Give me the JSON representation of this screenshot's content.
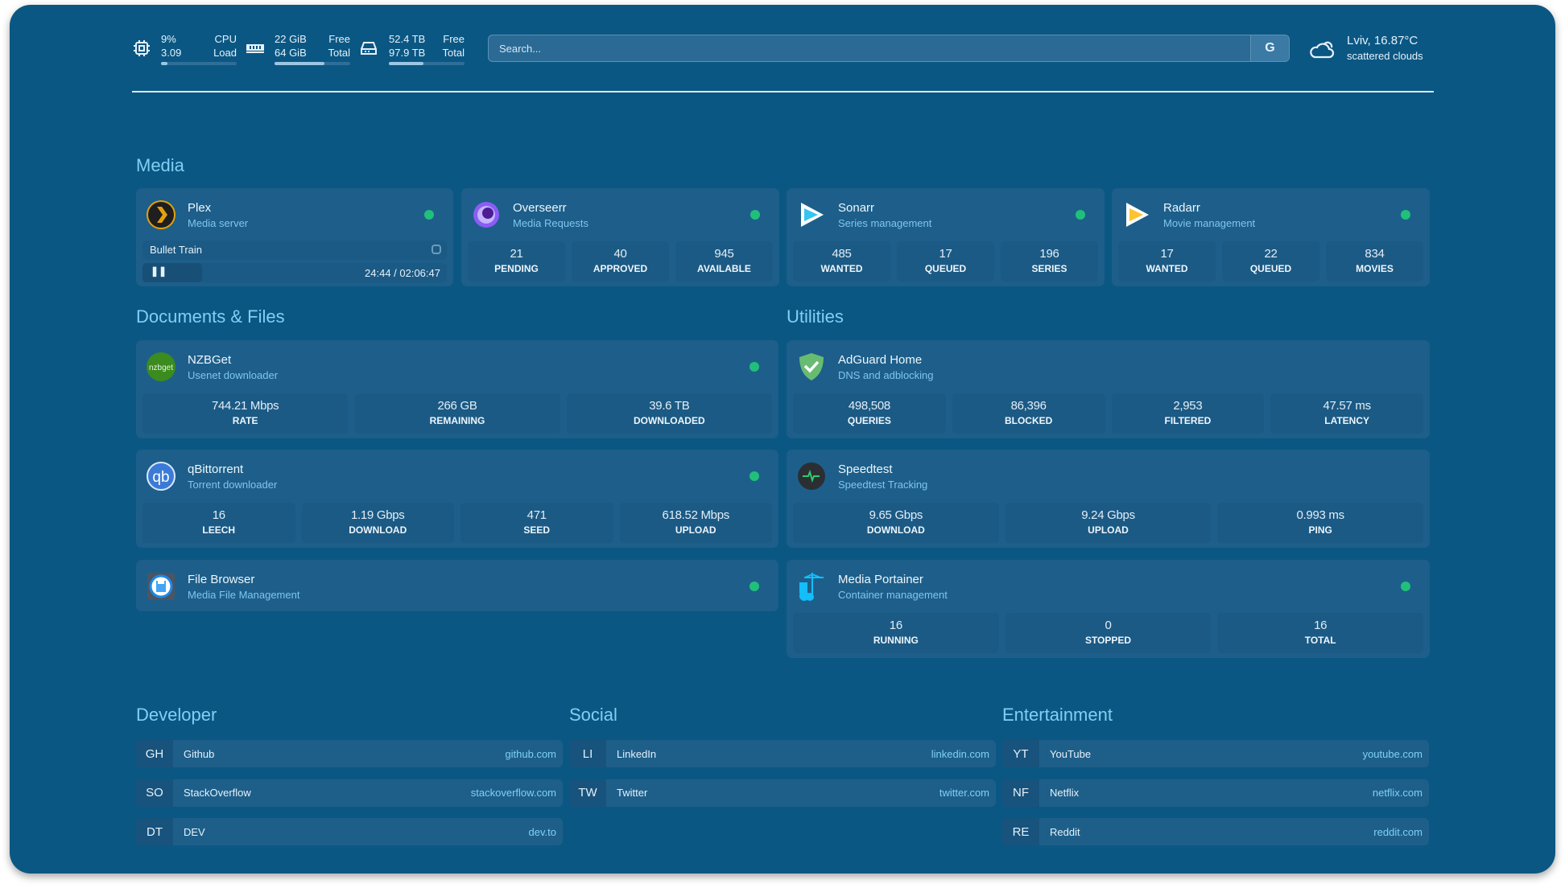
{
  "header": {
    "cpu": {
      "icon": "cpu-icon",
      "value1": "9%",
      "value2": "3.09",
      "label1": "CPU",
      "label2": "Load",
      "percent": 9
    },
    "memory": {
      "icon": "memory-icon",
      "value1": "22 GiB",
      "value2": "64 GiB",
      "label1": "Free",
      "label2": "Total",
      "percent": 66
    },
    "disk": {
      "icon": "disk-icon",
      "value1": "52.4 TB",
      "value2": "97.9 TB",
      "label1": "Free",
      "label2": "Total",
      "percent": 46
    },
    "search": {
      "placeholder": "Search...",
      "button": "G"
    },
    "weather": {
      "icon": "cloud-icon",
      "location_temp": "Lviv, 16.87°C",
      "condition": "scattered clouds"
    }
  },
  "colors": {
    "background": "#0b5783",
    "card": "#1d5f8a",
    "accent": "#7fd0f5",
    "status_ok": "#21c07a"
  },
  "media": {
    "title": "Media",
    "cards": [
      {
        "name": "Plex",
        "desc": "Media server",
        "icon": "plex-icon",
        "now_playing": {
          "title": "Bullet Train",
          "time": "24:44 / 02:06:47",
          "progress": 0.195
        }
      },
      {
        "name": "Overseerr",
        "desc": "Media Requests",
        "icon": "overseerr-icon",
        "stats": [
          {
            "value": "21",
            "label": "PENDING"
          },
          {
            "value": "40",
            "label": "APPROVED"
          },
          {
            "value": "945",
            "label": "AVAILABLE"
          }
        ]
      },
      {
        "name": "Sonarr",
        "desc": "Series management",
        "icon": "sonarr-icon",
        "stats": [
          {
            "value": "485",
            "label": "WANTED"
          },
          {
            "value": "17",
            "label": "QUEUED"
          },
          {
            "value": "196",
            "label": "SERIES"
          }
        ]
      },
      {
        "name": "Radarr",
        "desc": "Movie management",
        "icon": "radarr-icon",
        "stats": [
          {
            "value": "17",
            "label": "WANTED"
          },
          {
            "value": "22",
            "label": "QUEUED"
          },
          {
            "value": "834",
            "label": "MOVIES"
          }
        ]
      }
    ]
  },
  "documents": {
    "title": "Documents & Files",
    "cards": [
      {
        "name": "NZBGet",
        "desc": "Usenet downloader",
        "icon": "nzbget-icon",
        "icon_text": "nzbget",
        "stats": [
          {
            "value": "744.21 Mbps",
            "label": "RATE"
          },
          {
            "value": "266 GB",
            "label": "REMAINING"
          },
          {
            "value": "39.6 TB",
            "label": "DOWNLOADED"
          }
        ]
      },
      {
        "name": "qBittorrent",
        "desc": "Torrent downloader",
        "icon": "qbittorrent-icon",
        "icon_text": "qb",
        "stats": [
          {
            "value": "16",
            "label": "LEECH"
          },
          {
            "value": "1.19 Gbps",
            "label": "DOWNLOAD"
          },
          {
            "value": "471",
            "label": "SEED"
          },
          {
            "value": "618.52 Mbps",
            "label": "UPLOAD"
          }
        ]
      },
      {
        "name": "File Browser",
        "desc": "Media File Management",
        "icon": "file-browser-icon"
      }
    ]
  },
  "utilities": {
    "title": "Utilities",
    "cards": [
      {
        "name": "AdGuard Home",
        "desc": "DNS and adblocking",
        "icon": "adguard-shield-icon",
        "stats": [
          {
            "value": "498,508",
            "label": "QUERIES"
          },
          {
            "value": "86,396",
            "label": "BLOCKED"
          },
          {
            "value": "2,953",
            "label": "FILTERED"
          },
          {
            "value": "47.57 ms",
            "label": "LATENCY"
          }
        ]
      },
      {
        "name": "Speedtest",
        "desc": "Speedtest Tracking",
        "icon": "speedtest-pulse-icon",
        "stats": [
          {
            "value": "9.65 Gbps",
            "label": "DOWNLOAD"
          },
          {
            "value": "9.24 Gbps",
            "label": "UPLOAD"
          },
          {
            "value": "0.993 ms",
            "label": "PING"
          }
        ]
      },
      {
        "name": "Media Portainer",
        "desc": "Container management",
        "icon": "portainer-icon",
        "stats": [
          {
            "value": "16",
            "label": "RUNNING"
          },
          {
            "value": "0",
            "label": "STOPPED"
          },
          {
            "value": "16",
            "label": "TOTAL"
          }
        ]
      }
    ]
  },
  "bookmarks": [
    {
      "title": "Developer",
      "links": [
        {
          "abbr": "GH",
          "name": "Github",
          "url": "github.com"
        },
        {
          "abbr": "SO",
          "name": "StackOverflow",
          "url": "stackoverflow.com"
        },
        {
          "abbr": "DT",
          "name": "DEV",
          "url": "dev.to"
        }
      ]
    },
    {
      "title": "Social",
      "links": [
        {
          "abbr": "LI",
          "name": "LinkedIn",
          "url": "linkedin.com"
        },
        {
          "abbr": "TW",
          "name": "Twitter",
          "url": "twitter.com"
        }
      ]
    },
    {
      "title": "Entertainment",
      "links": [
        {
          "abbr": "YT",
          "name": "YouTube",
          "url": "youtube.com"
        },
        {
          "abbr": "NF",
          "name": "Netflix",
          "url": "netflix.com"
        },
        {
          "abbr": "RE",
          "name": "Reddit",
          "url": "reddit.com"
        }
      ]
    }
  ]
}
